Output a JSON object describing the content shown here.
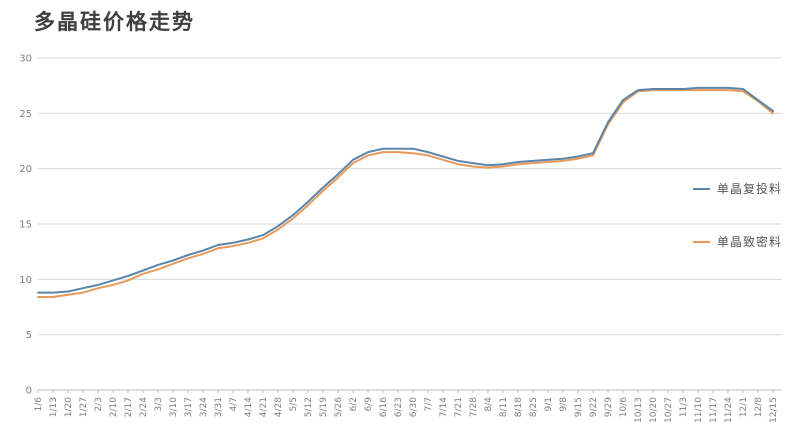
{
  "title": "多晶硅价格走势",
  "legend": [
    {
      "label": "单晶复投料",
      "color": "#5b85a9"
    },
    {
      "label": "单晶致密料",
      "color": "#e79a59"
    }
  ],
  "colors": {
    "grid": "#d9d9d9",
    "axis": "#bfbfbf",
    "tick_label": "#808080",
    "title_text": "#3f3f3f"
  },
  "chart_data": {
    "type": "line",
    "title": "多晶硅价格走势",
    "xlabel": "",
    "ylabel": "",
    "ylim": [
      0,
      30
    ],
    "yticks": [
      0,
      5,
      10,
      15,
      20,
      25,
      30
    ],
    "grid": true,
    "legend_position": "right",
    "categories": [
      "1/6",
      "1/13",
      "1/20",
      "1/27",
      "2/3",
      "2/10",
      "2/17",
      "2/24",
      "3/3",
      "3/10",
      "3/17",
      "3/24",
      "3/31",
      "4/7",
      "4/14",
      "4/21",
      "4/28",
      "5/5",
      "5/12",
      "5/19",
      "5/26",
      "6/2",
      "6/9",
      "6/16",
      "6/23",
      "6/30",
      "7/7",
      "7/14",
      "7/21",
      "7/28",
      "8/4",
      "8/11",
      "8/18",
      "8/25",
      "9/1",
      "9/8",
      "9/15",
      "9/22",
      "9/29",
      "10/6",
      "10/13",
      "10/20",
      "10/27",
      "11/3",
      "11/10",
      "11/17",
      "11/24",
      "12/1",
      "12/8",
      "12/15"
    ],
    "series": [
      {
        "name": "单晶复投料",
        "color": "#5b85a9",
        "values": [
          8.8,
          8.8,
          8.9,
          9.2,
          9.5,
          9.9,
          10.3,
          10.8,
          11.3,
          11.7,
          12.2,
          12.6,
          13.1,
          13.3,
          13.6,
          14.0,
          14.8,
          15.8,
          17.0,
          18.3,
          19.5,
          20.8,
          21.5,
          21.8,
          21.8,
          21.8,
          21.5,
          21.1,
          20.7,
          20.5,
          20.3,
          20.4,
          20.6,
          20.7,
          20.8,
          20.9,
          21.1,
          21.4,
          24.2,
          26.2,
          27.1,
          27.2,
          27.2,
          27.2,
          27.3,
          27.3,
          27.3,
          27.2,
          26.2,
          25.2
        ]
      },
      {
        "name": "单晶致密料",
        "color": "#e79a59",
        "values": [
          8.4,
          8.4,
          8.6,
          8.8,
          9.2,
          9.5,
          9.9,
          10.5,
          10.9,
          11.4,
          11.9,
          12.3,
          12.8,
          13.0,
          13.3,
          13.7,
          14.5,
          15.5,
          16.7,
          18.0,
          19.2,
          20.5,
          21.2,
          21.5,
          21.5,
          21.4,
          21.2,
          20.8,
          20.4,
          20.2,
          20.1,
          20.2,
          20.4,
          20.5,
          20.6,
          20.7,
          20.9,
          21.2,
          24.0,
          26.0,
          27.0,
          27.1,
          27.1,
          27.1,
          27.1,
          27.1,
          27.1,
          27.0,
          26.1,
          25.0
        ]
      }
    ]
  }
}
